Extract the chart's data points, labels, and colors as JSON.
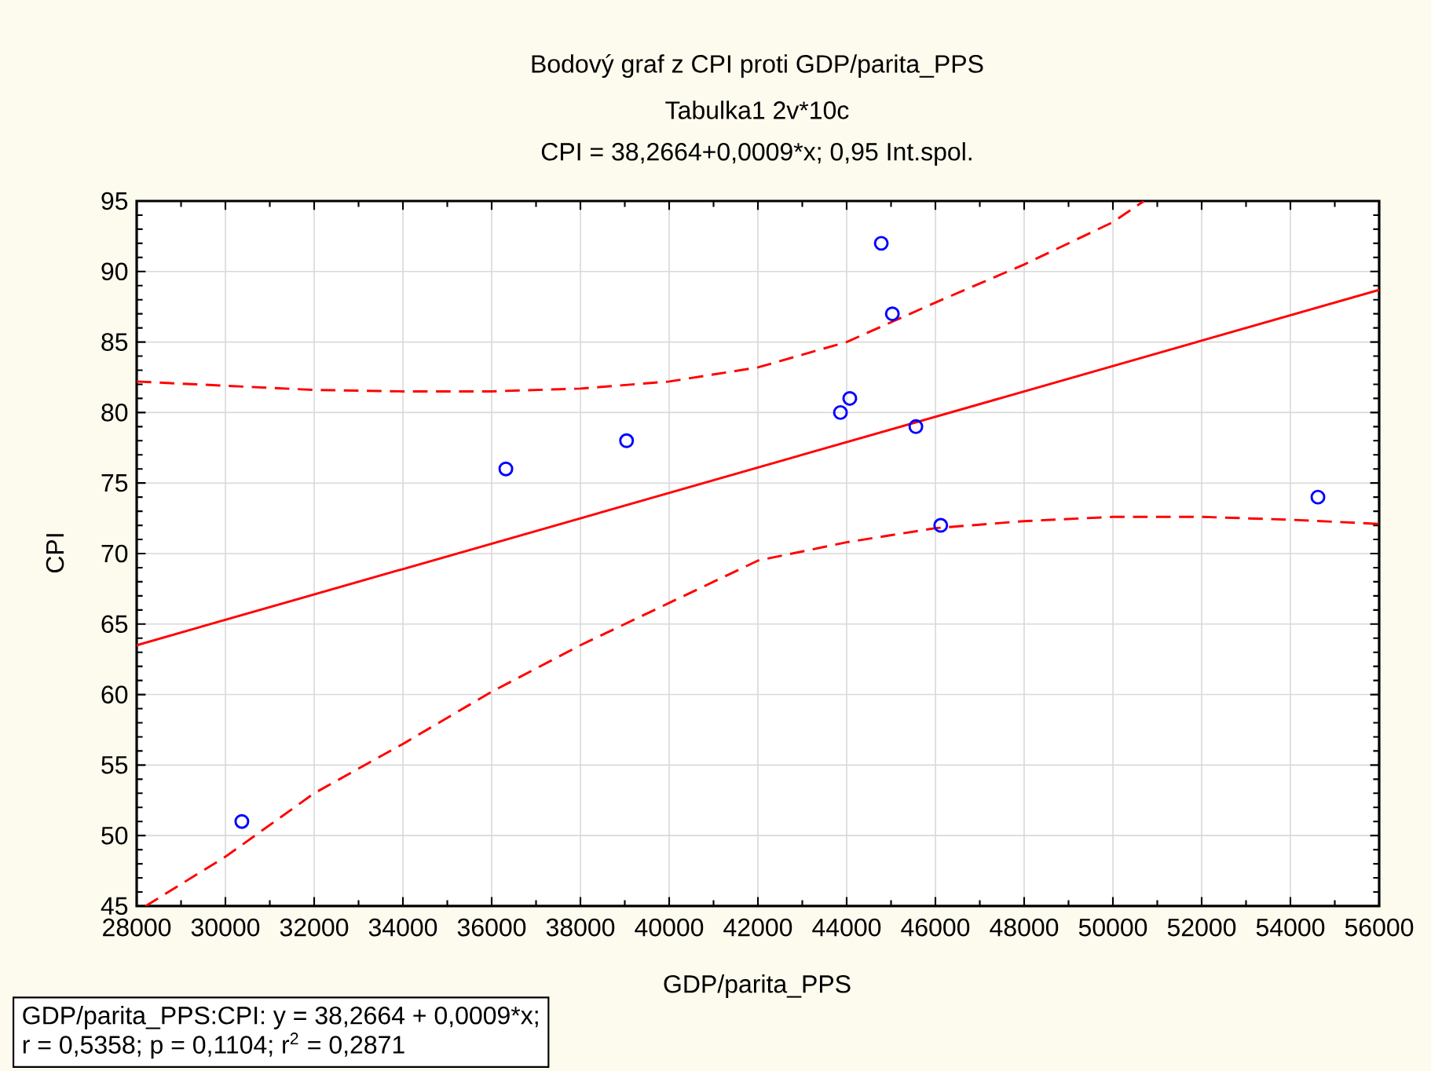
{
  "chart_data": {
    "type": "scatter",
    "title": "Bodový graf z CPI proti GDP/parita_PPS",
    "subtitle": "Tabulka1 2v*10c",
    "xlabel": "GDP/parita_PPS",
    "ylabel": "CPI",
    "annotations": [
      "CPI = 38,2664+0,0009*x; 0,95 Int.spol.",
      "GDP/parita_PPS:CPI:   y = 38,2664 + 0,0009*x;",
      "r = 0,5358; p = 0,1104; r$^{2}$ = 0,2871"
    ],
    "xlim": [
      28000,
      56000
    ],
    "xticks": [
      28000,
      30000,
      32000,
      34000,
      36000,
      38000,
      40000,
      42000,
      44000,
      46000,
      48000,
      50000,
      52000,
      54000,
      56000
    ],
    "ylim": [
      45,
      95
    ],
    "yticks": [
      45,
      50,
      55,
      60,
      65,
      70,
      75,
      80,
      85,
      90,
      95
    ],
    "grid": true,
    "series": [
      {
        "color": "#0000ff",
        "marker": "circle",
        "x": [
          30370,
          36320,
          39040,
          43860,
          44070,
          44780,
          45030,
          45560,
          46120,
          54620
        ],
        "values": [
          51,
          76,
          78,
          80,
          81,
          92,
          87,
          79,
          72,
          74
        ]
      },
      {
        "type": "line",
        "color": "#ff0000",
        "line_style": "solid",
        "x": [
          28000,
          56000
        ],
        "values": [
          63.5,
          88.7
        ]
      },
      {
        "type": "line",
        "color": "#ff0000",
        "line_style": "dashed",
        "x": [
          28000,
          30000,
          32000,
          34000,
          36000,
          38000,
          40000,
          42000,
          44000,
          46000,
          48000,
          50000,
          50700
        ],
        "values": [
          82.2,
          81.9,
          81.6,
          81.5,
          81.5,
          81.7,
          82.2,
          83.2,
          85,
          87.8,
          90.5,
          93.5,
          95
        ]
      },
      {
        "type": "line",
        "color": "#ff0000",
        "line_style": "dashed",
        "x": [
          28200,
          30000,
          32000,
          34000,
          36000,
          38000,
          40000,
          42000,
          44000,
          46000,
          48000,
          50000,
          52000,
          54000,
          56000
        ],
        "values": [
          45,
          48.5,
          53,
          56.5,
          60.2,
          63.5,
          66.5,
          69.5,
          70.8,
          71.8,
          72.3,
          72.6,
          72.6,
          72.4,
          72.1
        ]
      }
    ]
  }
}
